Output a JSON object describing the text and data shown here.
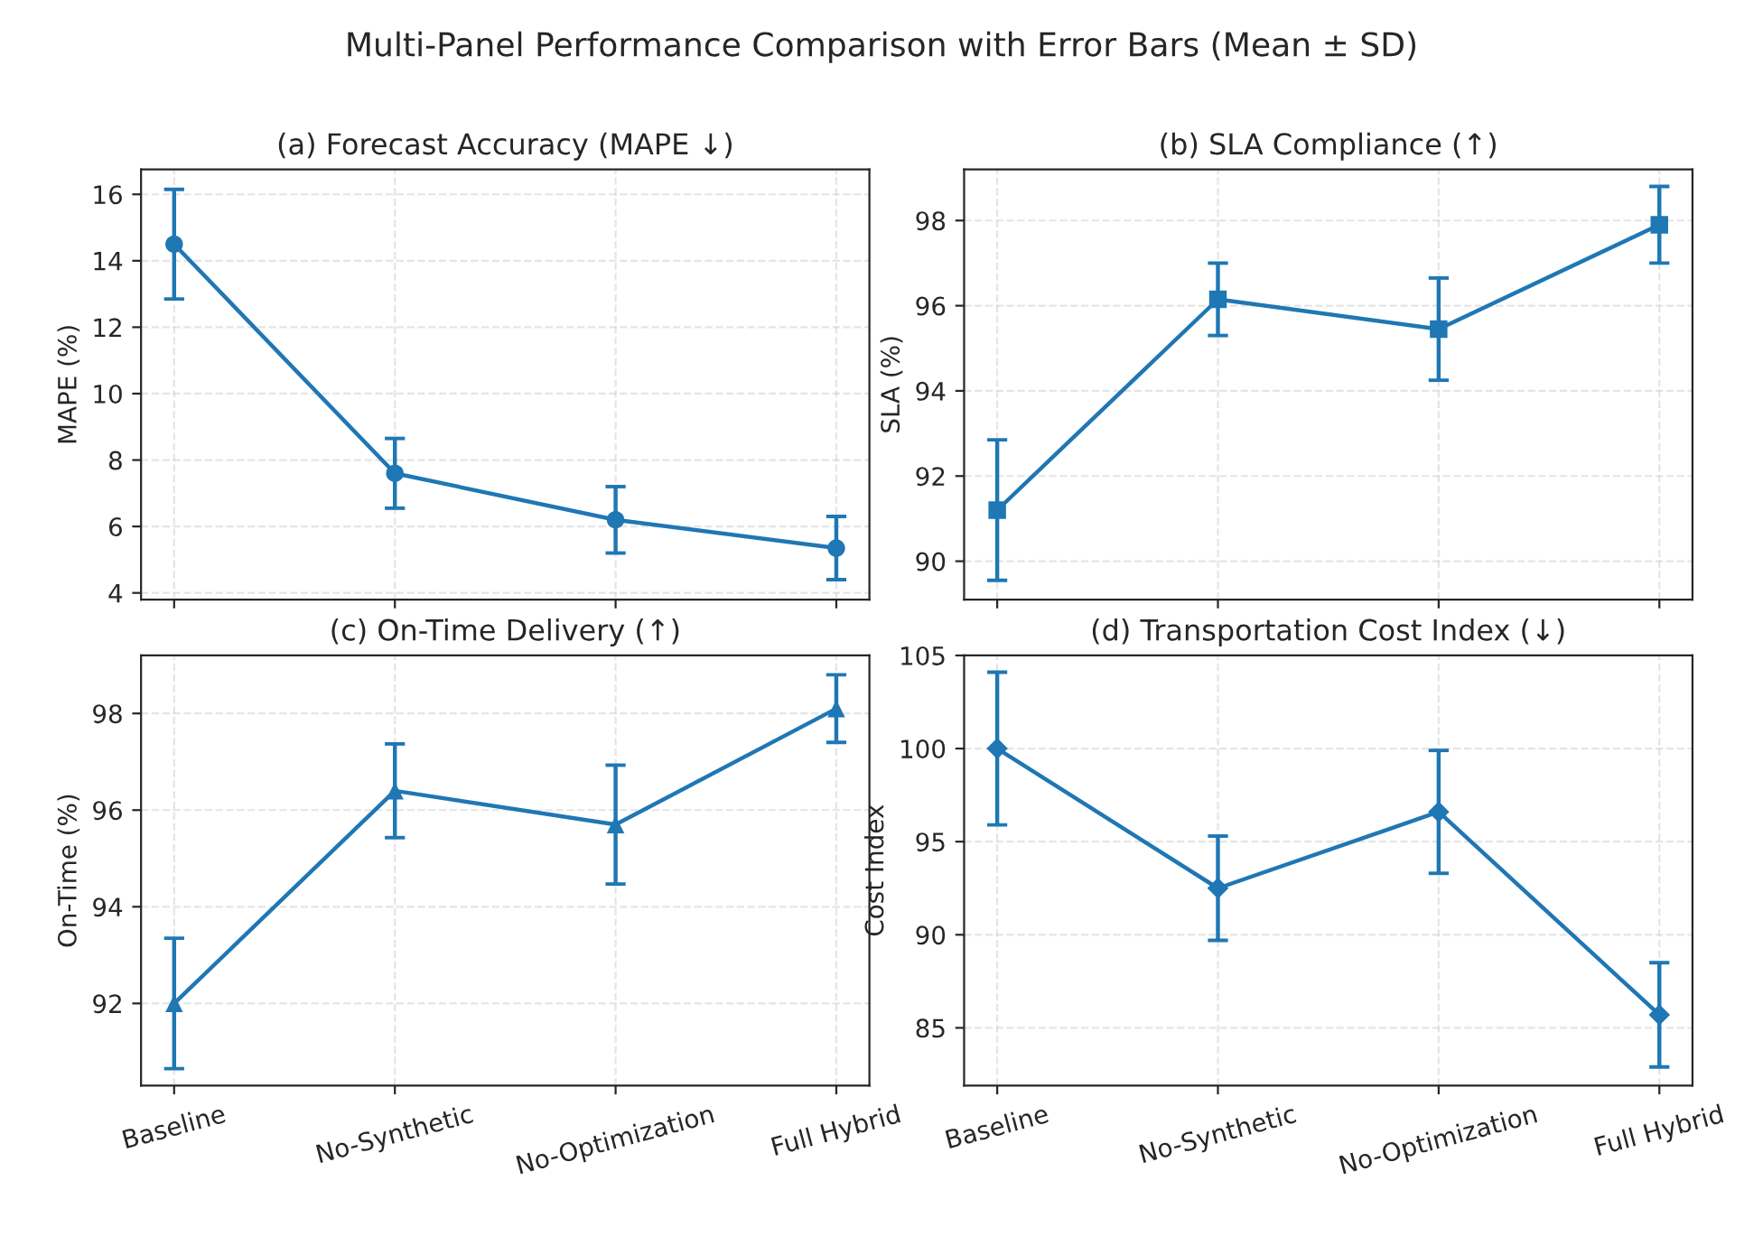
{
  "chart_data": [
    {
      "type": "line",
      "title": "(a) Forecast Accuracy (MAPE ↓)",
      "ylabel": "MAPE (%)",
      "annotations": [
        "Multi-Panel Performance Comparison with Error Bars (Mean ± SD)"
      ],
      "categories": [
        "Baseline",
        "No-Synthetic",
        "No-Optimization",
        "Full Hybrid"
      ],
      "series": [
        {
          "color": "#1f77b4",
          "values": [
            14.5,
            7.6,
            6.2,
            5.35
          ],
          "errors": [
            1.65,
            1.05,
            1.0,
            0.95
          ]
        }
      ],
      "marker": "circle",
      "ylim": [
        3.8,
        16.75
      ],
      "yticks": [
        4,
        6,
        8,
        10,
        12,
        14,
        16
      ],
      "grid": true,
      "tick_labels": "y"
    },
    {
      "type": "line",
      "title": "(b) SLA Compliance (↑)",
      "ylabel": "SLA (%)",
      "categories": [
        "Baseline",
        "No-Synthetic",
        "No-Optimization",
        "Full Hybrid"
      ],
      "series": [
        {
          "color": "#1f77b4",
          "values": [
            91.2,
            96.15,
            95.45,
            97.9
          ],
          "errors": [
            1.65,
            0.85,
            1.2,
            0.9
          ]
        }
      ],
      "marker": "square",
      "ylim": [
        89.1,
        99.2
      ],
      "yticks": [
        90,
        92,
        94,
        96,
        98
      ],
      "grid": true,
      "tick_labels": "y"
    },
    {
      "type": "line",
      "title": "(c) On-Time Delivery (↑)",
      "ylabel": "On-Time (%)",
      "categories": [
        "Baseline",
        "No-Synthetic",
        "No-Optimization",
        "Full Hybrid"
      ],
      "series": [
        {
          "color": "#1f77b4",
          "values": [
            92.0,
            96.4,
            95.7,
            98.1
          ],
          "errors": [
            1.35,
            0.97,
            1.23,
            0.7
          ]
        }
      ],
      "marker": "triangle",
      "ylim": [
        90.3,
        99.2
      ],
      "yticks": [
        92,
        94,
        96,
        98
      ],
      "grid": true
    },
    {
      "type": "line",
      "title": "(d) Transportation Cost Index (↓)",
      "ylabel": "Cost Index",
      "categories": [
        "Baseline",
        "No-Synthetic",
        "No-Optimization",
        "Full Hybrid"
      ],
      "series": [
        {
          "color": "#1f77b4",
          "values": [
            100,
            92.5,
            96.6,
            85.7
          ],
          "errors": [
            4.1,
            2.8,
            3.3,
            2.8
          ]
        }
      ],
      "marker": "diamond",
      "ylim": [
        81.9,
        105
      ],
      "yticks": [
        85,
        90,
        95,
        100,
        105
      ],
      "grid": true
    }
  ]
}
